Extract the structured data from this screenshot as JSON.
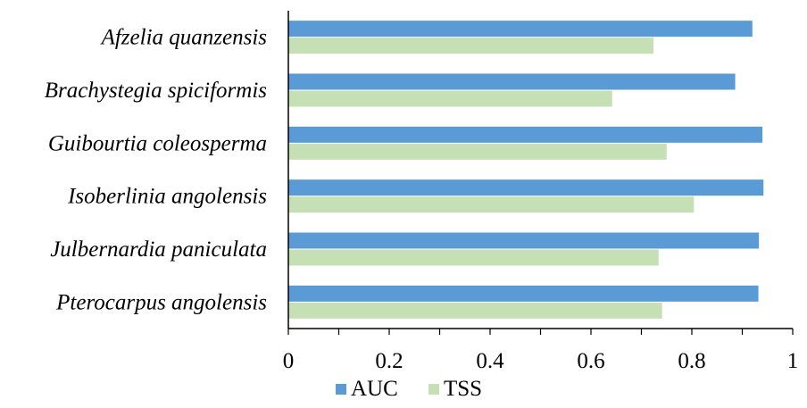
{
  "chart_data": {
    "type": "bar",
    "orientation": "horizontal",
    "categories": [
      "Afzelia quanzensis",
      "Brachystegia spiciformis",
      "Guibourtia coleosperma",
      "Isoberlinia angolensis",
      "Julbernardia paniculata",
      "Pterocarpus angolensis"
    ],
    "series": [
      {
        "name": "AUC",
        "color": "#5b9bd5",
        "values": [
          0.92,
          0.886,
          0.94,
          0.942,
          0.933,
          0.932
        ]
      },
      {
        "name": "TSS",
        "color": "#c5e0b4",
        "values": [
          0.724,
          0.642,
          0.75,
          0.804,
          0.734,
          0.741
        ]
      }
    ],
    "title": "",
    "xlabel": "",
    "ylabel": "",
    "xlim": [
      0,
      1
    ],
    "xticks": [
      0,
      0.2,
      0.4,
      0.6,
      0.8,
      1
    ],
    "xtick_labels": [
      "0",
      "0.2",
      "0.4",
      "0.6",
      "0.8",
      "1"
    ],
    "grid": false,
    "legend_position": "bottom"
  }
}
